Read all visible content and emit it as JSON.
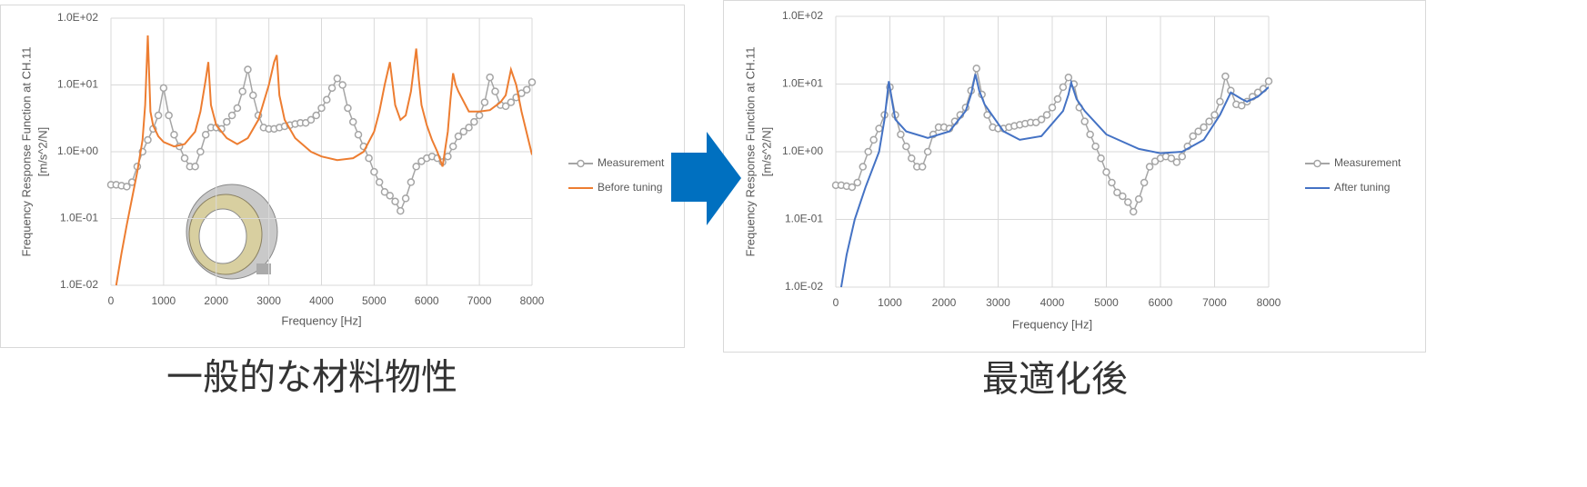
{
  "chart_data": [
    {
      "type": "line",
      "caption": "一般的な材料物性",
      "x_label": "Frequency [Hz]",
      "y_label": [
        "Frequency Response Function at CH.11",
        "[m/s^2/N]"
      ],
      "log_y": true,
      "grid": true,
      "legend": "right",
      "xlim": [
        0,
        8000
      ],
      "xticks": [
        0,
        1000,
        2000,
        3000,
        4000,
        5000,
        6000,
        7000,
        8000
      ],
      "ylim": [
        0.01,
        100
      ],
      "yticks": [
        {
          "value": 0.01,
          "label": "1.0E-02"
        },
        {
          "value": 0.1,
          "label": "1.0E-01"
        },
        {
          "value": 1,
          "label": "1.0E+00"
        },
        {
          "value": 10,
          "label": "1.0E+01"
        },
        {
          "value": 100,
          "label": "1.0E+02"
        }
      ],
      "series": [
        {
          "name": "Measurement",
          "color": "#a5a5a5",
          "marker": "circle",
          "x": [
            0,
            100,
            200,
            300,
            400,
            500,
            600,
            700,
            800,
            900,
            1000,
            1100,
            1200,
            1300,
            1400,
            1500,
            1600,
            1700,
            1800,
            1900,
            2000,
            2100,
            2200,
            2300,
            2400,
            2500,
            2600,
            2700,
            2800,
            2900,
            3000,
            3100,
            3200,
            3300,
            3400,
            3500,
            3600,
            3700,
            3800,
            3900,
            4000,
            4100,
            4200,
            4300,
            4400,
            4500,
            4600,
            4700,
            4800,
            4900,
            5000,
            5100,
            5200,
            5300,
            5400,
            5500,
            5600,
            5700,
            5800,
            5900,
            6000,
            6100,
            6200,
            6300,
            6400,
            6500,
            6600,
            6700,
            6800,
            6900,
            7000,
            7100,
            7200,
            7300,
            7400,
            7500,
            7600,
            7700,
            7800,
            7900,
            8000
          ],
          "values": [
            0.32,
            0.32,
            0.31,
            0.3,
            0.35,
            0.6,
            1.0,
            1.5,
            2.2,
            3.5,
            9,
            3.5,
            1.8,
            1.2,
            0.8,
            0.6,
            0.6,
            1.0,
            1.8,
            2.3,
            2.3,
            2.2,
            2.8,
            3.5,
            4.5,
            8,
            17,
            7,
            3.5,
            2.3,
            2.2,
            2.2,
            2.3,
            2.4,
            2.5,
            2.6,
            2.7,
            2.7,
            3.0,
            3.5,
            4.5,
            6,
            9,
            12.5,
            10,
            4.5,
            2.8,
            1.8,
            1.2,
            0.8,
            0.5,
            0.35,
            0.25,
            0.22,
            0.18,
            0.13,
            0.2,
            0.35,
            0.6,
            0.72,
            0.8,
            0.85,
            0.8,
            0.7,
            0.85,
            1.2,
            1.7,
            2.0,
            2.3,
            2.8,
            3.5,
            5.5,
            13,
            8,
            5,
            4.8,
            5.5,
            6.5,
            7.5,
            8.5,
            11
          ]
        },
        {
          "name": "Before tuning",
          "color": "#ed7d31",
          "x": [
            100,
            200,
            300,
            400,
            500,
            600,
            650,
            700,
            750,
            800,
            900,
            1000,
            1200,
            1400,
            1600,
            1700,
            1800,
            1850,
            1900,
            2000,
            2200,
            2400,
            2600,
            2800,
            3000,
            3100,
            3150,
            3200,
            3300,
            3500,
            3800,
            4000,
            4300,
            4600,
            4800,
            5000,
            5100,
            5200,
            5300,
            5400,
            5500,
            5600,
            5700,
            5800,
            5850,
            5900,
            6000,
            6100,
            6200,
            6300,
            6400,
            6450,
            6500,
            6550,
            6600,
            6800,
            7000,
            7200,
            7400,
            7500,
            7600,
            7700,
            7800,
            8000
          ],
          "values": [
            0.01,
            0.03,
            0.08,
            0.2,
            0.5,
            1.5,
            5,
            55,
            4,
            2.5,
            1.7,
            1.4,
            1.2,
            1.3,
            2,
            4,
            12,
            22,
            5,
            2.5,
            1.6,
            1.3,
            1.6,
            3,
            10,
            22,
            28,
            7,
            3,
            1.6,
            1.0,
            0.85,
            0.75,
            0.8,
            1.0,
            2.0,
            4,
            10,
            22,
            5,
            3,
            3.5,
            8,
            35,
            12,
            5,
            2.5,
            1.5,
            1.0,
            0.6,
            2,
            6,
            15,
            10,
            8,
            4,
            4,
            4.2,
            5.5,
            7,
            17,
            10,
            4,
            0.9
          ]
        }
      ]
    },
    {
      "type": "line",
      "caption": "最適化後",
      "x_label": "Frequency [Hz]",
      "y_label": [
        "Frequency Response Function at CH.11",
        "[m/s^2/N]"
      ],
      "log_y": true,
      "grid": true,
      "legend": "right",
      "xlim": [
        0,
        8000
      ],
      "xticks": [
        0,
        1000,
        2000,
        3000,
        4000,
        5000,
        6000,
        7000,
        8000
      ],
      "ylim": [
        0.01,
        100
      ],
      "yticks": [
        {
          "value": 0.01,
          "label": "1.0E-02"
        },
        {
          "value": 0.1,
          "label": "1.0E-01"
        },
        {
          "value": 1,
          "label": "1.0E+00"
        },
        {
          "value": 10,
          "label": "1.0E+01"
        },
        {
          "value": 100,
          "label": "1.0E+02"
        }
      ],
      "series": [
        {
          "name": "Measurement",
          "color": "#a5a5a5",
          "marker": "circle",
          "x": [
            0,
            100,
            200,
            300,
            400,
            500,
            600,
            700,
            800,
            900,
            1000,
            1100,
            1200,
            1300,
            1400,
            1500,
            1600,
            1700,
            1800,
            1900,
            2000,
            2100,
            2200,
            2300,
            2400,
            2500,
            2600,
            2700,
            2800,
            2900,
            3000,
            3100,
            3200,
            3300,
            3400,
            3500,
            3600,
            3700,
            3800,
            3900,
            4000,
            4100,
            4200,
            4300,
            4400,
            4500,
            4600,
            4700,
            4800,
            4900,
            5000,
            5100,
            5200,
            5300,
            5400,
            5500,
            5600,
            5700,
            5800,
            5900,
            6000,
            6100,
            6200,
            6300,
            6400,
            6500,
            6600,
            6700,
            6800,
            6900,
            7000,
            7100,
            7200,
            7300,
            7400,
            7500,
            7600,
            7700,
            7800,
            7900,
            8000
          ],
          "values": [
            0.32,
            0.32,
            0.31,
            0.3,
            0.35,
            0.6,
            1.0,
            1.5,
            2.2,
            3.5,
            9,
            3.5,
            1.8,
            1.2,
            0.8,
            0.6,
            0.6,
            1.0,
            1.8,
            2.3,
            2.3,
            2.2,
            2.8,
            3.5,
            4.5,
            8,
            17,
            7,
            3.5,
            2.3,
            2.2,
            2.2,
            2.3,
            2.4,
            2.5,
            2.6,
            2.7,
            2.7,
            3.0,
            3.5,
            4.5,
            6,
            9,
            12.5,
            10,
            4.5,
            2.8,
            1.8,
            1.2,
            0.8,
            0.5,
            0.35,
            0.25,
            0.22,
            0.18,
            0.13,
            0.2,
            0.35,
            0.6,
            0.72,
            0.8,
            0.85,
            0.8,
            0.7,
            0.85,
            1.2,
            1.7,
            2.0,
            2.3,
            2.8,
            3.5,
            5.5,
            13,
            8,
            5,
            4.8,
            5.5,
            6.5,
            7.5,
            8.5,
            11
          ]
        },
        {
          "name": "After tuning",
          "color": "#4472c4",
          "x": [
            100,
            200,
            350,
            550,
            800,
            900,
            980,
            1050,
            1100,
            1300,
            1700,
            2100,
            2400,
            2500,
            2580,
            2650,
            2750,
            3100,
            3400,
            3800,
            4200,
            4300,
            4350,
            4450,
            4600,
            5000,
            5600,
            6000,
            6400,
            6800,
            7100,
            7300,
            7500,
            7600,
            7800,
            8000
          ],
          "values": [
            0.01,
            0.03,
            0.1,
            0.3,
            1,
            3,
            11,
            5,
            3,
            2,
            1.6,
            2,
            4,
            7,
            14,
            8,
            5,
            2,
            1.5,
            1.7,
            4,
            7,
            10.5,
            6,
            4,
            1.8,
            1.1,
            0.95,
            1.0,
            1.5,
            3.5,
            7.5,
            6,
            5.5,
            6.5,
            9
          ]
        }
      ]
    }
  ]
}
